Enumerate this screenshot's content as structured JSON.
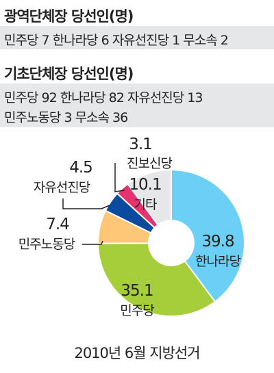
{
  "regional_heads": {
    "title": "광역단체장 당선인(명)",
    "summary": "민주당 7 한나라당 6 자유선진당 1 무소속 2"
  },
  "local_heads": {
    "title": "기초단체장 당선인(명)",
    "summary_line1": "민주당 92 한나라당 82 자유선진당 13",
    "summary_line2": "민주노동당 3 무소속 36"
  },
  "colors": {
    "band_background": "#e6e7e8",
    "text": "#222222"
  },
  "chart_data": {
    "type": "pie",
    "donut": true,
    "title": "2010년 6월 지방선거",
    "unit": "%",
    "slices": [
      {
        "name": "한나라당",
        "value": 39.8,
        "color": "#6ccff6"
      },
      {
        "name": "민주당",
        "value": 35.1,
        "color": "#a6ce39"
      },
      {
        "name": "민주노동당",
        "value": 7.4,
        "color": "#fdc776"
      },
      {
        "name": "자유선진당",
        "value": 4.5,
        "color": "#0a4b9f"
      },
      {
        "name": "진보신당",
        "value": 3.1,
        "color": "#e6336f"
      },
      {
        "name": "기타",
        "value": 10.1,
        "color": "#e6e7e8"
      }
    ]
  }
}
